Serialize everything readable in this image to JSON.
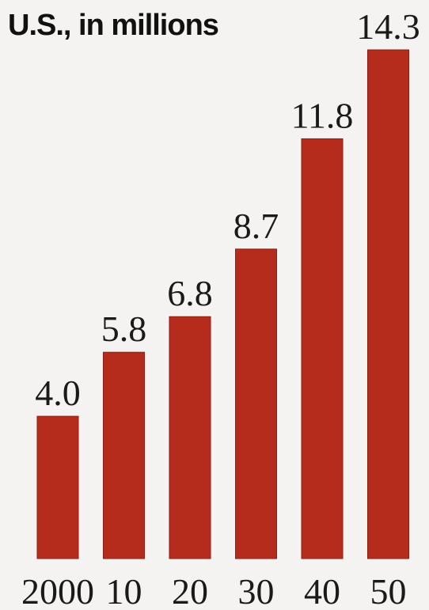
{
  "chart_data": {
    "type": "bar",
    "title": "U.S., in millions",
    "categories": [
      "2000",
      "10",
      "20",
      "30",
      "40",
      "50"
    ],
    "values": [
      4.0,
      5.8,
      6.8,
      8.7,
      11.8,
      14.3
    ],
    "value_labels": [
      "4.0",
      "5.8",
      "6.8",
      "8.7",
      "11.8",
      "14.3"
    ],
    "xlabel": "",
    "ylabel": "",
    "ylim": [
      0,
      14.3
    ],
    "grid": false,
    "legend": "none",
    "bar_color": "#b52b1c",
    "bar_edge_color": "#8e1f12"
  }
}
